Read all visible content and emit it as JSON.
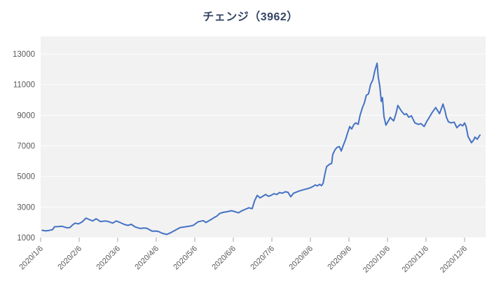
{
  "chart_data": {
    "type": "line",
    "title": "チェンジ（3962）",
    "x_tick_labels": [
      "2020/1/6",
      "2020/2/6",
      "2020/3/6",
      "2020/4/6",
      "2020/5/6",
      "2020/6/6",
      "2020/7/6",
      "2020/8/6",
      "2020/9/6",
      "2020/10/6",
      "2020/11/6",
      "2020/12/6"
    ],
    "y_tick_labels": [
      "1000",
      "3000",
      "5000",
      "7000",
      "9000",
      "11000",
      "13000"
    ],
    "y_ticks": [
      1000,
      3000,
      5000,
      7000,
      9000,
      11000,
      13000
    ],
    "ylim": [
      1000,
      13000
    ],
    "x_unit": "months_since_2020/1/6",
    "grid": true,
    "legend": "none",
    "points": [
      [
        0.04,
        1480
      ],
      [
        0.13,
        1440
      ],
      [
        0.22,
        1470
      ],
      [
        0.31,
        1520
      ],
      [
        0.36,
        1710
      ],
      [
        0.45,
        1720
      ],
      [
        0.55,
        1740
      ],
      [
        0.62,
        1690
      ],
      [
        0.69,
        1640
      ],
      [
        0.76,
        1660
      ],
      [
        0.82,
        1810
      ],
      [
        0.89,
        1950
      ],
      [
        0.98,
        1900
      ],
      [
        1.07,
        2010
      ],
      [
        1.18,
        2280
      ],
      [
        1.25,
        2190
      ],
      [
        1.35,
        2090
      ],
      [
        1.44,
        2230
      ],
      [
        1.55,
        2050
      ],
      [
        1.67,
        2090
      ],
      [
        1.75,
        2060
      ],
      [
        1.87,
        1950
      ],
      [
        1.96,
        2090
      ],
      [
        2.07,
        1980
      ],
      [
        2.18,
        1850
      ],
      [
        2.27,
        1800
      ],
      [
        2.35,
        1870
      ],
      [
        2.45,
        1700
      ],
      [
        2.58,
        1600
      ],
      [
        2.69,
        1630
      ],
      [
        2.76,
        1610
      ],
      [
        2.89,
        1420
      ],
      [
        3.0,
        1430
      ],
      [
        3.07,
        1390
      ],
      [
        3.16,
        1280
      ],
      [
        3.27,
        1210
      ],
      [
        3.36,
        1300
      ],
      [
        3.49,
        1480
      ],
      [
        3.62,
        1660
      ],
      [
        3.73,
        1700
      ],
      [
        3.85,
        1740
      ],
      [
        3.96,
        1800
      ],
      [
        4.09,
        2040
      ],
      [
        4.22,
        2110
      ],
      [
        4.29,
        1990
      ],
      [
        4.4,
        2150
      ],
      [
        4.49,
        2290
      ],
      [
        4.58,
        2420
      ],
      [
        4.64,
        2570
      ],
      [
        4.73,
        2650
      ],
      [
        4.85,
        2700
      ],
      [
        4.95,
        2760
      ],
      [
        5.04,
        2700
      ],
      [
        5.13,
        2620
      ],
      [
        5.22,
        2750
      ],
      [
        5.31,
        2850
      ],
      [
        5.4,
        2950
      ],
      [
        5.49,
        2890
      ],
      [
        5.55,
        3400
      ],
      [
        5.62,
        3760
      ],
      [
        5.69,
        3600
      ],
      [
        5.76,
        3700
      ],
      [
        5.84,
        3820
      ],
      [
        5.91,
        3700
      ],
      [
        5.98,
        3760
      ],
      [
        6.05,
        3870
      ],
      [
        6.13,
        3820
      ],
      [
        6.2,
        3950
      ],
      [
        6.27,
        3900
      ],
      [
        6.35,
        4000
      ],
      [
        6.42,
        3960
      ],
      [
        6.49,
        3670
      ],
      [
        6.56,
        3900
      ],
      [
        6.64,
        3980
      ],
      [
        6.71,
        4050
      ],
      [
        6.78,
        4100
      ],
      [
        6.85,
        4150
      ],
      [
        6.93,
        4200
      ],
      [
        7.0,
        4260
      ],
      [
        7.07,
        4350
      ],
      [
        7.13,
        4450
      ],
      [
        7.18,
        4380
      ],
      [
        7.24,
        4480
      ],
      [
        7.29,
        4400
      ],
      [
        7.33,
        4550
      ],
      [
        7.38,
        5200
      ],
      [
        7.42,
        5640
      ],
      [
        7.49,
        5780
      ],
      [
        7.55,
        5850
      ],
      [
        7.58,
        6430
      ],
      [
        7.64,
        6750
      ],
      [
        7.69,
        6900
      ],
      [
        7.75,
        6950
      ],
      [
        7.8,
        6660
      ],
      [
        7.85,
        7020
      ],
      [
        7.91,
        7400
      ],
      [
        7.96,
        7800
      ],
      [
        8.02,
        8260
      ],
      [
        8.07,
        8100
      ],
      [
        8.13,
        8400
      ],
      [
        8.18,
        8500
      ],
      [
        8.24,
        8400
      ],
      [
        8.29,
        9000
      ],
      [
        8.35,
        9500
      ],
      [
        8.4,
        9800
      ],
      [
        8.45,
        10300
      ],
      [
        8.51,
        10400
      ],
      [
        8.56,
        11000
      ],
      [
        8.62,
        11300
      ],
      [
        8.67,
        11900
      ],
      [
        8.73,
        12400
      ],
      [
        8.76,
        11500
      ],
      [
        8.8,
        10900
      ],
      [
        8.84,
        9900
      ],
      [
        8.87,
        10150
      ],
      [
        8.91,
        8900
      ],
      [
        8.96,
        8350
      ],
      [
        9.04,
        8700
      ],
      [
        9.07,
        8860
      ],
      [
        9.13,
        8700
      ],
      [
        9.16,
        8630
      ],
      [
        9.22,
        9100
      ],
      [
        9.27,
        9640
      ],
      [
        9.33,
        9400
      ],
      [
        9.36,
        9270
      ],
      [
        9.44,
        9040
      ],
      [
        9.49,
        9100
      ],
      [
        9.55,
        8870
      ],
      [
        9.62,
        8960
      ],
      [
        9.67,
        8700
      ],
      [
        9.71,
        8500
      ],
      [
        9.8,
        8400
      ],
      [
        9.87,
        8450
      ],
      [
        9.95,
        8260
      ],
      [
        10.02,
        8600
      ],
      [
        10.07,
        8800
      ],
      [
        10.16,
        9180
      ],
      [
        10.25,
        9500
      ],
      [
        10.35,
        9100
      ],
      [
        10.44,
        9730
      ],
      [
        10.49,
        9300
      ],
      [
        10.53,
        8870
      ],
      [
        10.58,
        8570
      ],
      [
        10.65,
        8500
      ],
      [
        10.73,
        8550
      ],
      [
        10.8,
        8180
      ],
      [
        10.89,
        8400
      ],
      [
        10.95,
        8300
      ],
      [
        11.0,
        8500
      ],
      [
        11.04,
        8260
      ],
      [
        11.09,
        7600
      ],
      [
        11.15,
        7340
      ],
      [
        11.18,
        7200
      ],
      [
        11.24,
        7400
      ],
      [
        11.27,
        7570
      ],
      [
        11.33,
        7430
      ],
      [
        11.4,
        7700
      ]
    ],
    "colors": {
      "line": "#4472c4",
      "plot_background": "#f2f2f2",
      "gridline": "#fcfcfc",
      "axis_label": "#595959",
      "tick_mark": "#a6a6a6",
      "title": "#344563"
    }
  }
}
